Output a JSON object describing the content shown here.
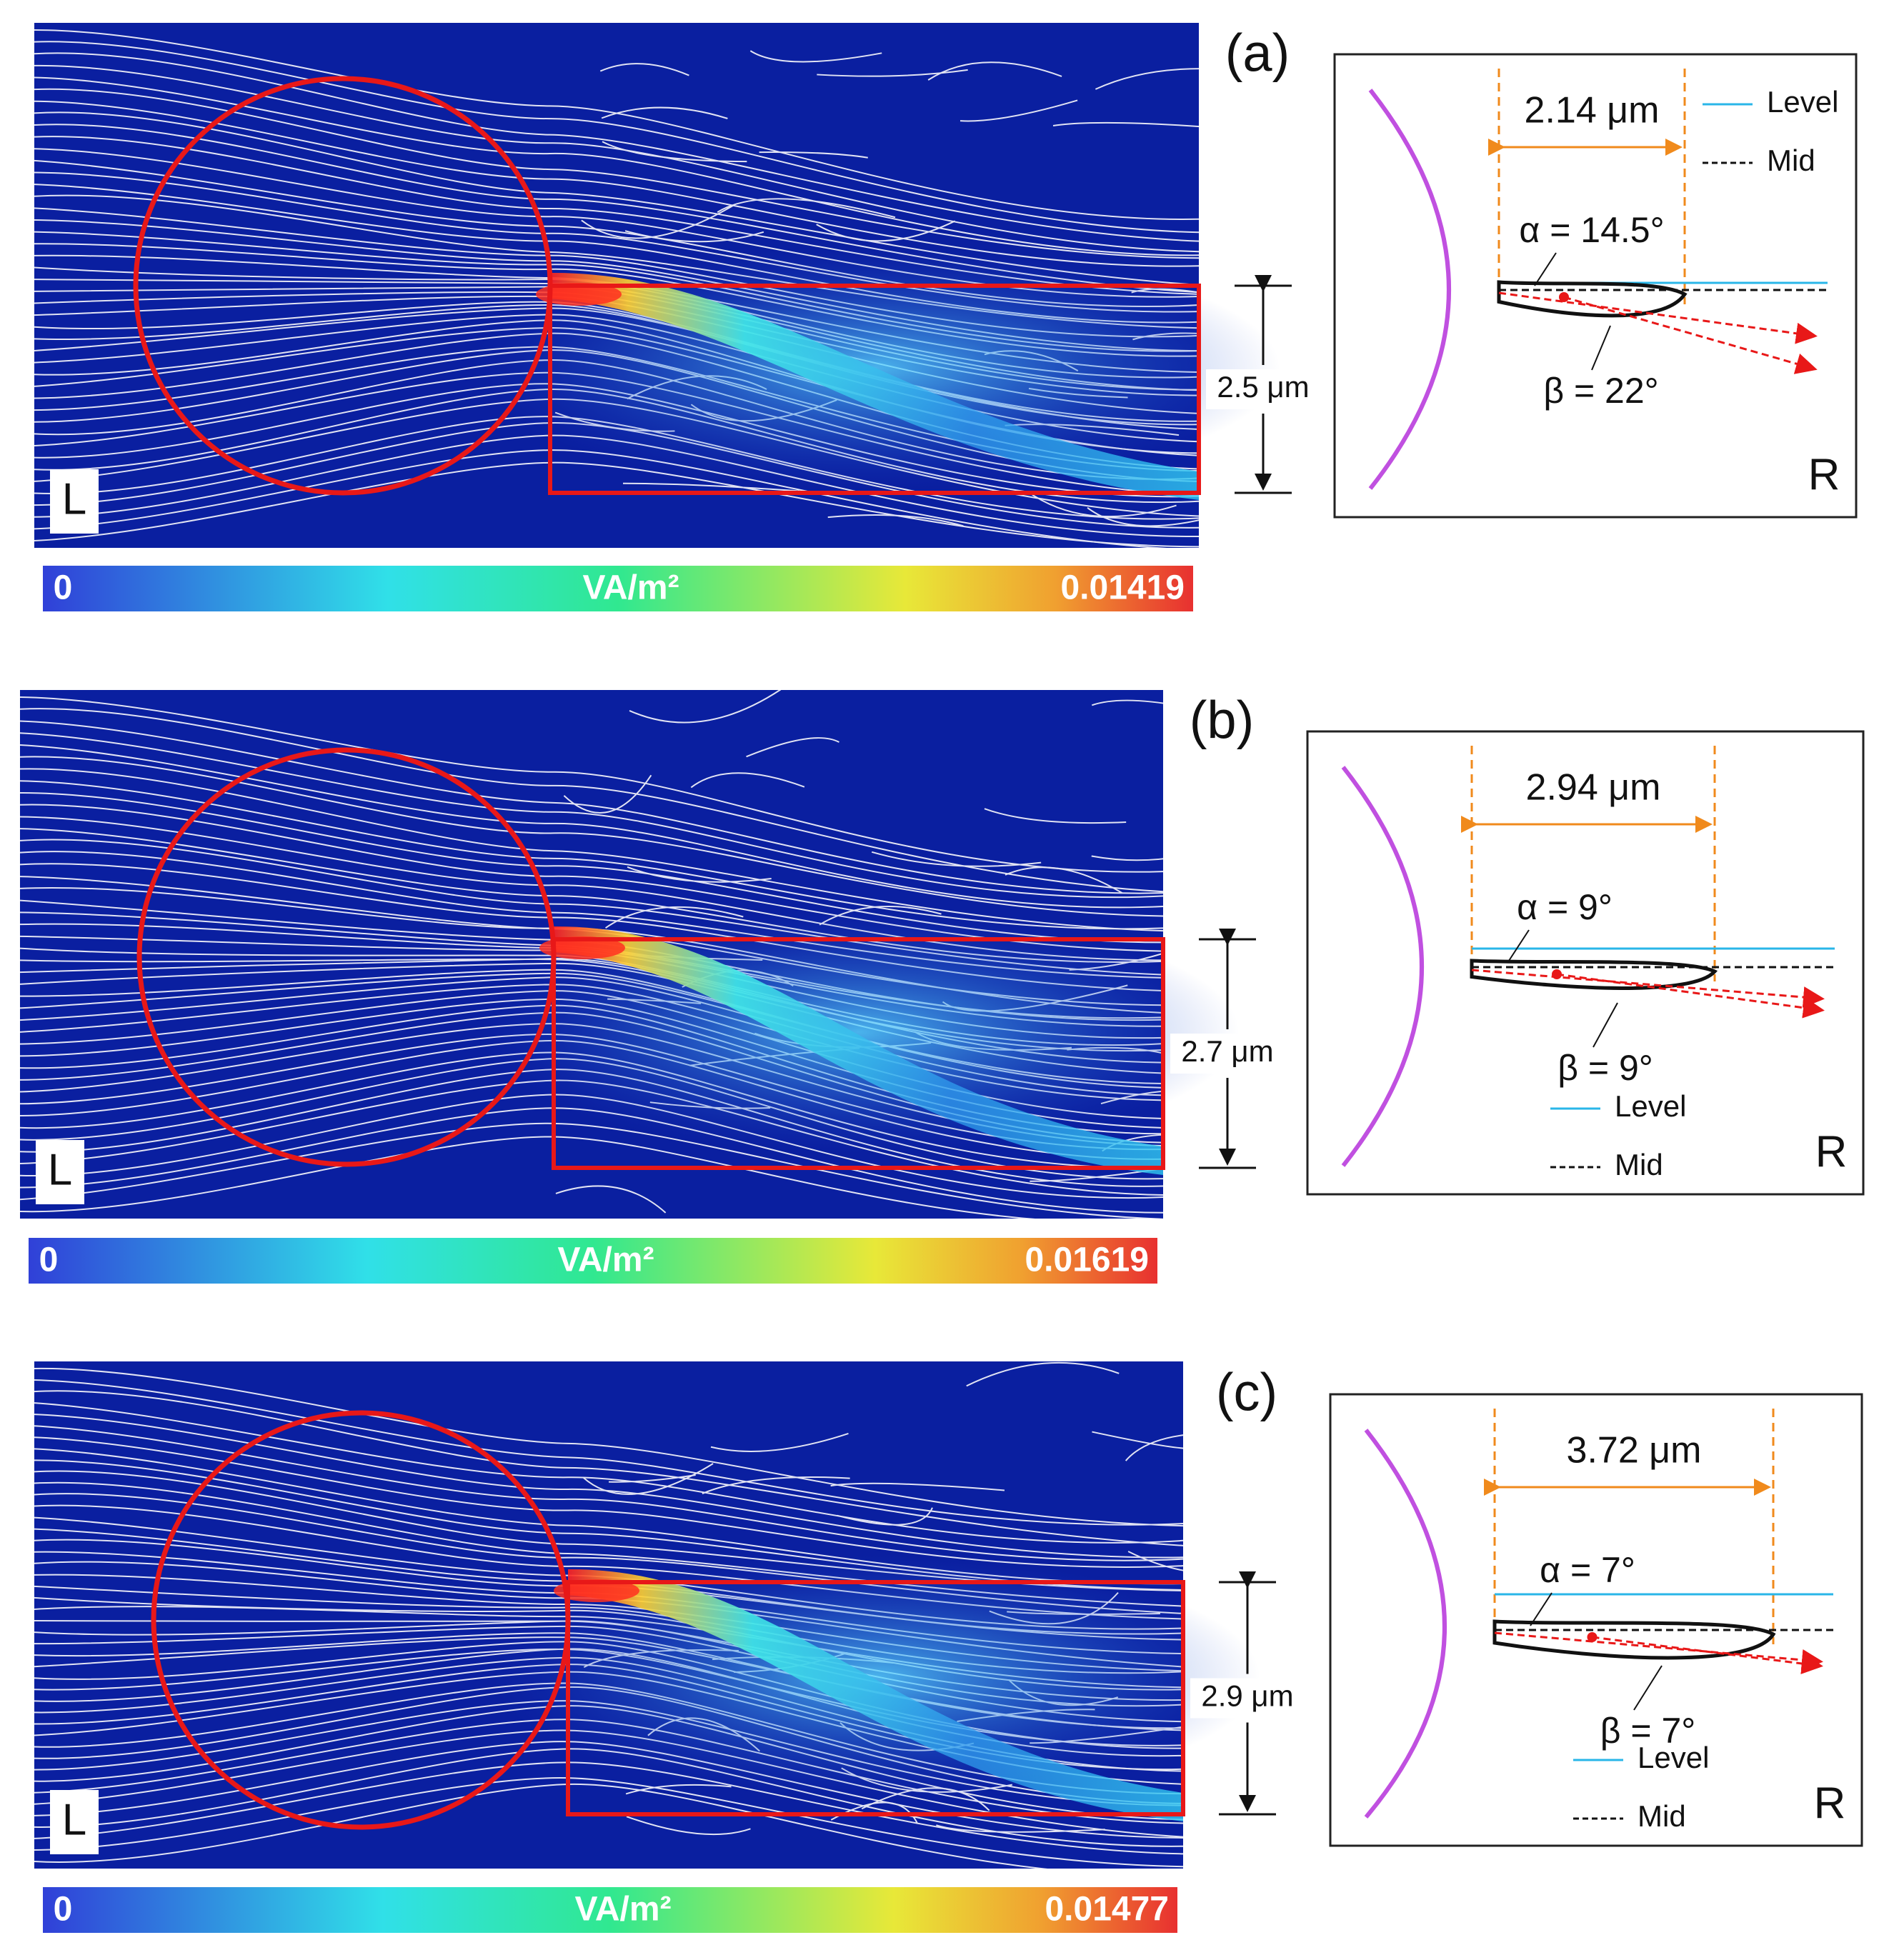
{
  "panels": [
    {
      "panel_label": "(a)",
      "left_label": "L",
      "right_label": "R",
      "colorbar": {
        "min": "0",
        "unit": "VA/m²",
        "max": "0.01419"
      },
      "height_label": "2.5 μm",
      "length_label": "2.14 μm",
      "alpha_label": "α = 14.5°",
      "beta_label": "β = 22°",
      "legend_level": "Level",
      "legend_mid": "Mid"
    },
    {
      "panel_label": "(b)",
      "left_label": "L",
      "right_label": "R",
      "colorbar": {
        "min": "0",
        "unit": "VA/m²",
        "max": "0.01619"
      },
      "height_label": "2.7 μm",
      "length_label": "2.94 μm",
      "alpha_label": "α = 9°",
      "beta_label": "β = 9°",
      "legend_level": "Level",
      "legend_mid": "Mid"
    },
    {
      "panel_label": "(c)",
      "left_label": "L",
      "right_label": "R",
      "colorbar": {
        "min": "0",
        "unit": "VA/m²",
        "max": "0.01477"
      },
      "height_label": "2.9 μm",
      "length_label": "3.72 μm",
      "alpha_label": "α = 7°",
      "beta_label": "β = 7°",
      "legend_level": "Level",
      "legend_mid": "Mid"
    }
  ],
  "colors": {
    "field_background": "#0a1fa0",
    "streamline": "#ffffff",
    "outline": "#e81818",
    "droplet_arc": "#c050e0",
    "level_line": "#29b6e8",
    "dimension": "#f08a1c",
    "arrow": "#e81818"
  }
}
